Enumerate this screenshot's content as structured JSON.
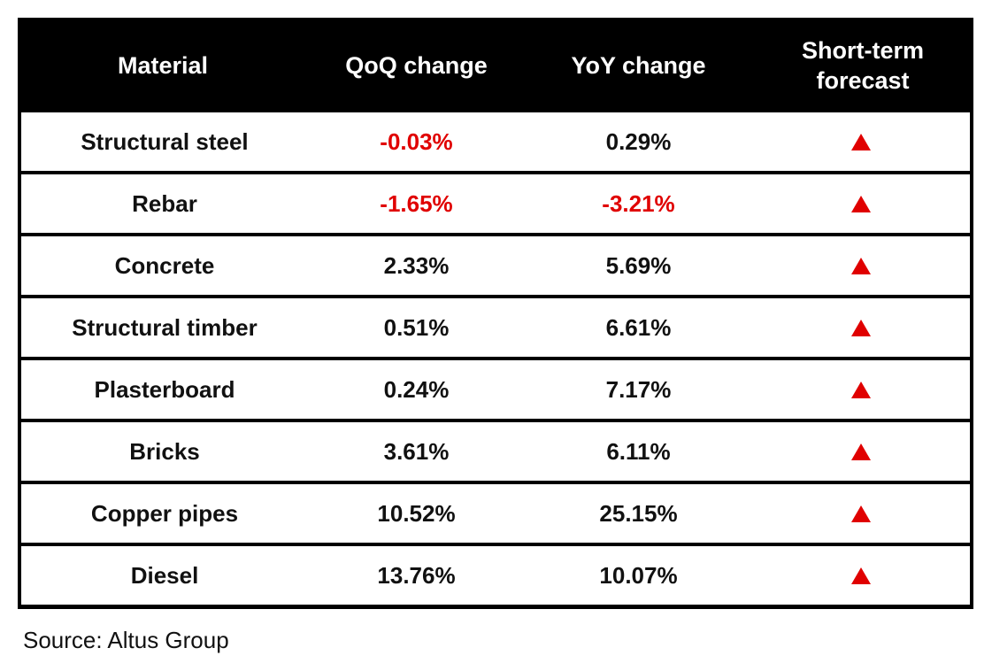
{
  "header": {
    "material": "Material",
    "qoq": "QoQ change",
    "yoy": "YoY change",
    "forecast": "Short-term forecast"
  },
  "rows": [
    {
      "material": "Structural steel",
      "qoq": "-0.03%",
      "yoy": "0.29%",
      "forecast": "up-arrow-icon"
    },
    {
      "material": "Rebar",
      "qoq": "-1.65%",
      "yoy": "-3.21%",
      "forecast": "up-arrow-icon"
    },
    {
      "material": "Concrete",
      "qoq": "2.33%",
      "yoy": "5.69%",
      "forecast": "up-arrow-icon"
    },
    {
      "material": "Structural timber",
      "qoq": "0.51%",
      "yoy": "6.61%",
      "forecast": "up-arrow-icon"
    },
    {
      "material": "Plasterboard",
      "qoq": "0.24%",
      "yoy": "7.17%",
      "forecast": "up-arrow-icon"
    },
    {
      "material": "Bricks",
      "qoq": "3.61%",
      "yoy": "6.11%",
      "forecast": "up-arrow-icon"
    },
    {
      "material": "Copper pipes",
      "qoq": "10.52%",
      "yoy": "25.15%",
      "forecast": "up-arrow-icon"
    },
    {
      "material": "Diesel",
      "qoq": "13.76%",
      "yoy": "10.07%",
      "forecast": "up-arrow-icon"
    }
  ],
  "colors": {
    "header_bg": "#000000",
    "header_text": "#ffffff",
    "negative": "#e00000",
    "forecast_up": "#e00000"
  },
  "source": "Source: Altus Group"
}
